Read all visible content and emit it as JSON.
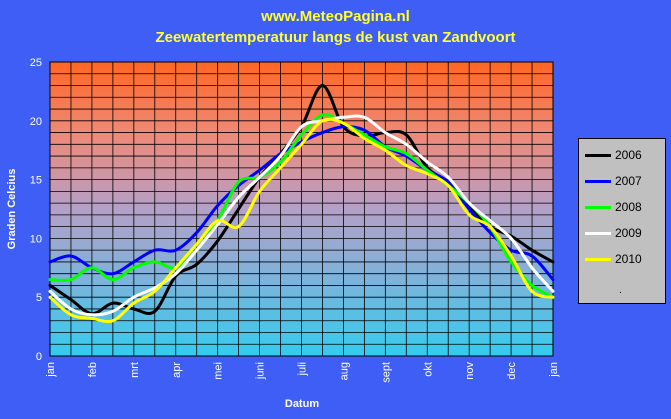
{
  "title": "www.MeteoPagina.nl",
  "subtitle": "Zeewatertemperatuur langs de kust van Zandvoort",
  "chart_data": {
    "type": "line",
    "xlabel": "Datum",
    "ylabel": "Graden Celcius",
    "ylim": [
      0,
      25
    ],
    "yticks": [
      0,
      5,
      10,
      15,
      20,
      25
    ],
    "x_tick_labels": [
      "jan",
      "feb",
      "mrt",
      "apr",
      "mei",
      "juni",
      "juli",
      "aug",
      "sept",
      "okt",
      "nov",
      "dec",
      "jan"
    ],
    "grid": true,
    "legend_position": "right",
    "legend_extra": ".",
    "x": [
      1,
      1.5,
      2,
      2.5,
      3,
      3.5,
      4,
      4.5,
      5,
      5.5,
      6,
      6.5,
      7,
      7.5,
      8,
      8.5,
      9,
      9.5,
      10,
      10.5,
      11,
      11.5,
      12,
      12.5,
      13
    ],
    "series": [
      {
        "name": "2006",
        "color": "#000000",
        "values": [
          6.0,
          4.8,
          3.6,
          4.5,
          4.0,
          3.8,
          6.8,
          7.8,
          9.8,
          12.5,
          15.2,
          17.2,
          19.5,
          23.0,
          19.5,
          18.7,
          19.0,
          18.8,
          16.0,
          14.8,
          12.8,
          11.0,
          10.2,
          9.0,
          8.0
        ]
      },
      {
        "name": "2007",
        "color": "#0000ff",
        "values": [
          8.0,
          8.5,
          7.5,
          7.0,
          8.0,
          9.0,
          9.0,
          10.5,
          12.8,
          14.5,
          15.8,
          17.2,
          18.2,
          19.0,
          19.5,
          19.2,
          17.8,
          17.0,
          15.8,
          14.8,
          12.5,
          10.5,
          9.0,
          8.5,
          6.5
        ]
      },
      {
        "name": "2008",
        "color": "#00ff00",
        "values": [
          6.5,
          6.5,
          7.5,
          6.5,
          7.5,
          8.0,
          7.5,
          9.0,
          11.5,
          14.8,
          15.2,
          16.5,
          18.8,
          20.5,
          19.8,
          18.8,
          17.8,
          17.2,
          15.8,
          14.5,
          13.0,
          11.0,
          8.0,
          6.0,
          5.0
        ]
      },
      {
        "name": "2009",
        "color": "#ffffff",
        "values": [
          5.5,
          4.0,
          3.5,
          3.8,
          5.0,
          5.8,
          7.0,
          9.0,
          11.2,
          13.5,
          15.2,
          17.0,
          19.5,
          20.0,
          20.3,
          20.3,
          19.0,
          18.0,
          16.5,
          15.2,
          13.0,
          11.5,
          10.0,
          7.5,
          5.5
        ]
      },
      {
        "name": "2010",
        "color": "#ffff00",
        "values": [
          5.0,
          3.5,
          3.2,
          3.0,
          4.5,
          5.5,
          7.5,
          9.5,
          11.5,
          11.0,
          14.0,
          16.0,
          18.0,
          20.0,
          19.8,
          18.5,
          17.5,
          16.2,
          15.5,
          14.5,
          12.0,
          11.0,
          8.5,
          5.5,
          5.0
        ]
      }
    ]
  }
}
